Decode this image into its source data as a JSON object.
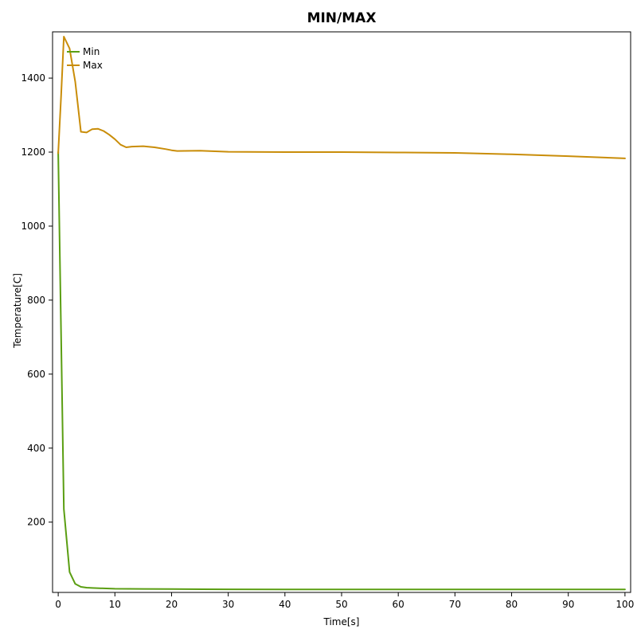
{
  "chart_data": {
    "type": "line",
    "title": "MIN/MAX",
    "xlabel": "Time[s]",
    "ylabel": "Temperature[C]",
    "xlim": [
      -1,
      101
    ],
    "ylim": [
      10,
      1525
    ],
    "x_ticks": [
      0,
      10,
      20,
      30,
      40,
      50,
      60,
      70,
      80,
      90,
      100
    ],
    "y_ticks": [
      200,
      400,
      600,
      800,
      1000,
      1200,
      1400
    ],
    "grid": false,
    "legend_position": "top-left",
    "series": [
      {
        "name": "Min",
        "color": "#5a9e12",
        "x": [
          0,
          1,
          2,
          3,
          4,
          5,
          6,
          8,
          10,
          15,
          20,
          30,
          40,
          50,
          60,
          70,
          80,
          90,
          100
        ],
        "y": [
          1200,
          235,
          65,
          33,
          25,
          23,
          22,
          21,
          20,
          19.5,
          19,
          18.5,
          18,
          18,
          18,
          18,
          18,
          18,
          18
        ]
      },
      {
        "name": "Max",
        "color": "#c98d09",
        "x": [
          0,
          0.5,
          1,
          2,
          3,
          4,
          5,
          6,
          7,
          8,
          9,
          10,
          11,
          12,
          13,
          15,
          17,
          19,
          20,
          21,
          25,
          30,
          40,
          50,
          60,
          70,
          80,
          90,
          100
        ],
        "y": [
          1197,
          1350,
          1512,
          1480,
          1390,
          1255,
          1253,
          1262,
          1263,
          1257,
          1247,
          1235,
          1220,
          1213,
          1215,
          1216,
          1213,
          1208,
          1205,
          1203,
          1204,
          1201,
          1200,
          1200,
          1199,
          1198,
          1194,
          1189,
          1183
        ]
      }
    ]
  }
}
